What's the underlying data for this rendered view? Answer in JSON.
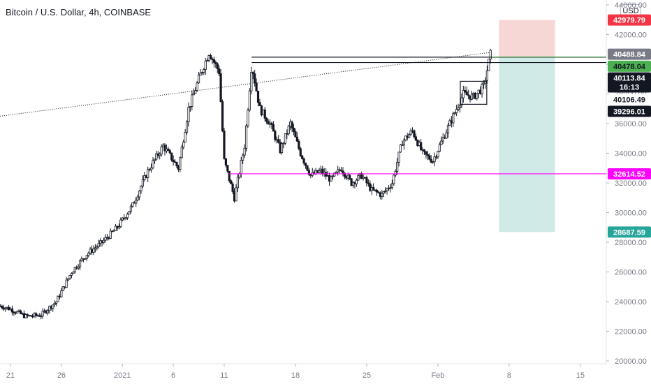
{
  "header": {
    "title": "Bitcoin / U.S. Dollar, 4h, COINBASE"
  },
  "currency_badge": "USD",
  "colors": {
    "axis_text": "#787b86",
    "candle_body": "#131722",
    "stop_zone": "#f7d6d6",
    "target_zone": "#cfeae7",
    "magenta_line": "#ff00ff",
    "green_line": "#4caf50",
    "label_red": "#f23645",
    "label_green": "#4caf50",
    "label_teal": "#26a69a",
    "label_magenta": "#ff00ff",
    "label_black": "#131722",
    "label_gray": "#787b86"
  },
  "chart_data": {
    "type": "candlestick",
    "title": "Bitcoin / U.S. Dollar, 4h, COINBASE",
    "ylim": [
      20000,
      44000
    ],
    "y_ticks": [
      "20000.00",
      "22000.00",
      "24000.00",
      "26000.00",
      "28000.00",
      "30000.00",
      "32000.00",
      "34000.00",
      "36000.00",
      "38000.00",
      "40000.00",
      "42000.00",
      "44000.00"
    ],
    "x_ticks": [
      {
        "label": "21",
        "day": 0
      },
      {
        "label": "26",
        "day": 5
      },
      {
        "label": "2021",
        "day": 11
      },
      {
        "label": "6",
        "day": 16
      },
      {
        "label": "11",
        "day": 21
      },
      {
        "label": "18",
        "day": 28
      },
      {
        "label": "25",
        "day": 35
      },
      {
        "label": "Feb",
        "day": 42
      },
      {
        "label": "8",
        "day": 49
      },
      {
        "label": "15",
        "day": 56
      }
    ],
    "path_days": [
      -1.0,
      0.0,
      1.5,
      3.0,
      4.5,
      6.0,
      7.5,
      9.0,
      10.5,
      12.0,
      13.5,
      15.0,
      16.5,
      17.5,
      18.5,
      19.5,
      20.5,
      21.0,
      22.0,
      23.0,
      23.7,
      24.5,
      25.5,
      26.5,
      27.5,
      28.5,
      29.5,
      30.5,
      31.5,
      32.5,
      33.5,
      34.5,
      35.5,
      36.5,
      37.5,
      38.5,
      39.5,
      40.5,
      41.5,
      42.5,
      43.5,
      44.5,
      45.5,
      46.5,
      47.2
    ],
    "path_prices": [
      23700,
      23500,
      23000,
      23100,
      24000,
      26000,
      27200,
      28000,
      29000,
      30500,
      32800,
      34500,
      33000,
      37000,
      39000,
      40800,
      39500,
      33500,
      31000,
      34500,
      40000,
      37000,
      36000,
      34200,
      36000,
      34000,
      32500,
      32800,
      32200,
      33000,
      32000,
      32500,
      31500,
      31200,
      32000,
      34800,
      35500,
      34000,
      33500,
      35000,
      36500,
      38000,
      37800,
      38500,
      40800
    ],
    "horizontal_levels": [
      {
        "price": 40478.04,
        "from_day": 23.7,
        "style": "black",
        "label": "40478.04"
      },
      {
        "price": 40113.84,
        "from_day": 23.7,
        "style": "black",
        "label": "40113.84"
      },
      {
        "price": 32614.52,
        "from_day": 21.5,
        "style": "magenta",
        "label": "32614.52"
      }
    ],
    "position_tool": {
      "from_day": 48.0,
      "to_day": 53.5,
      "entry": 40488.84,
      "stop": 42979.79,
      "target": 28687.59
    },
    "consolidation_box": {
      "from_day": 44.2,
      "to_day": 46.8,
      "low": 37300,
      "high": 38850
    },
    "last_price": 40488.84,
    "extra_labels": [
      "16:13",
      "40106.49",
      "39296.01"
    ],
    "partial_tick": "38"
  }
}
